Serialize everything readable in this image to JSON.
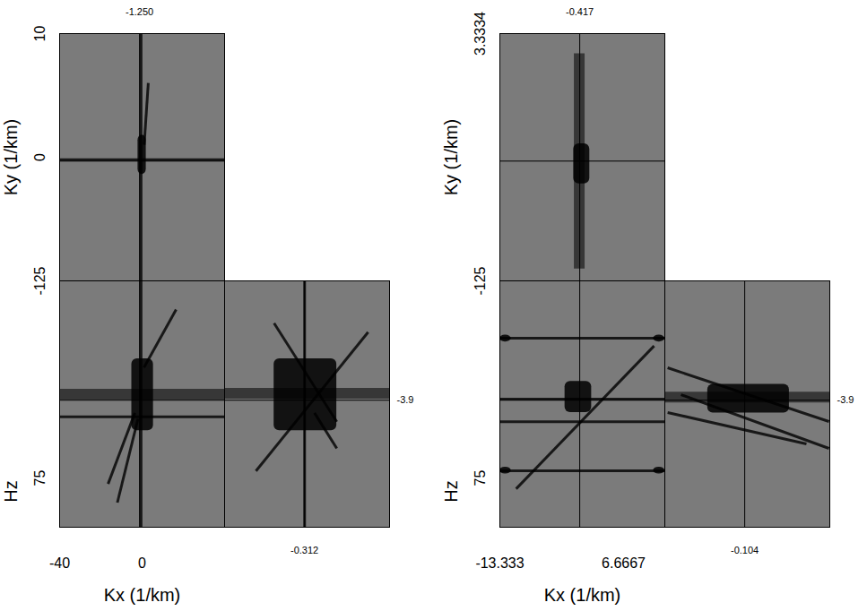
{
  "chart_data": [
    {
      "type": "cube",
      "xlabel": "Kx (1/km)",
      "ylabel": "Ky (1/km)",
      "zlabel": "Hz",
      "xlim": [
        -40,
        40
      ],
      "xticks": [
        -40,
        0
      ],
      "ylim": [
        -10,
        10
      ],
      "yticks": [
        10,
        0
      ],
      "zlim": [
        -125,
        125
      ],
      "zticks": [
        -125,
        75
      ],
      "slice": {
        "x": {
          "value": -1.25,
          "label": "-1.250"
        },
        "y": -0.312,
        "z": -3.9
      },
      "color": "#7b7b7b",
      "features": {
        "top": {
          "bands": [],
          "streaks": [
            [
              -0.5,
              -10,
              -0.5,
              10
            ],
            [
              -40,
              -0.2,
              40,
              -0.2
            ],
            [
              1,
              1,
              3,
              6
            ]
          ],
          "blobs": [
            [
              -2,
              2,
              -1.4,
              1.8
            ]
          ]
        },
        "front": {
          "bands": [
            [
              -40,
              -10,
              40,
              -10
            ]
          ],
          "streaks": [
            [
              -40,
              13,
              40,
              13
            ],
            [
              -0.5,
              -125,
              -0.5,
              125
            ],
            [
              0.9,
              -37,
              16.5,
              -96
            ],
            [
              -3.5,
              9,
              -16.5,
              81
            ],
            [
              -2,
              15,
              -12,
              100
            ]
          ],
          "blobs": [
            [
              -5,
              5.5,
              -46,
              27
            ]
          ]
        },
        "side": {
          "bands": [
            [
              -10,
              -11,
              10,
              -11
            ]
          ],
          "streaks": [
            [
              -0.3,
              -125,
              -0.3,
              125
            ],
            [
              -4,
              -82,
              3.6,
              18
            ],
            [
              7.4,
              -73,
              -6.2,
              68
            ],
            [
              0.9,
              9,
              3.6,
              45
            ]
          ],
          "blobs": [
            [
              -4,
              3.6,
              -46,
              27
            ]
          ]
        }
      }
    },
    {
      "type": "cube",
      "xlabel": "Kx (1/km)",
      "ylabel": "Ky (1/km)",
      "zlabel": "Hz",
      "xlim": [
        -13.333,
        13.333
      ],
      "xticks": [
        -13.333,
        6.6667
      ],
      "ylim": [
        -3.3334,
        3.3334
      ],
      "yticks": [
        3.3334
      ],
      "zlim": [
        -125,
        125
      ],
      "zticks": [
        -125,
        75
      ],
      "slice": {
        "x": -0.417,
        "y": -0.104,
        "z": -3.9
      },
      "color": "#7b7b7b",
      "features": {
        "top": {
          "bands": [
            [
              -0.5,
              2.8,
              -0.5,
              -3.0
            ]
          ],
          "streaks": [],
          "blobs": [
            [
              -1.4,
              1.2,
              -0.72,
              0.36
            ]
          ]
        },
        "front": {
          "bands": [],
          "streaks": [
            [
              -13.333,
              -66.8,
              13.333,
              -66.8
            ],
            [
              -13.333,
              67.7,
              13.333,
              67.7
            ],
            [
              -13.333,
              -5,
              13.333,
              -5
            ],
            [
              -13.333,
              18,
              13.333,
              18
            ],
            [
              -10.7,
              86,
              11.6,
              -59
            ]
          ],
          "blobs": [
            [
              -2.8,
              1.5,
              -23,
              8.6
            ],
            [
              -13.333,
              -11.5,
              -70,
              -63
            ],
            [
              11.5,
              13.333,
              -70,
              -63
            ],
            [
              -13.333,
              -11.5,
              64,
              71
            ],
            [
              11.5,
              13.333,
              64,
              71
            ]
          ]
        },
        "side": {
          "bands": [
            [
              -3.3334,
              -7,
              3.3334,
              -7
            ]
          ],
          "streaks": [
            [
              -3.22,
              -36.8,
              3.3,
              17.7
            ],
            [
              -2.68,
              -9.5,
              3.3,
              45
            ],
            [
              -3.22,
              8.6,
              2.39,
              40.5
            ]
          ],
          "blobs": [
            [
              -1.6,
              1.7,
              -20,
              9
            ]
          ]
        }
      }
    }
  ]
}
